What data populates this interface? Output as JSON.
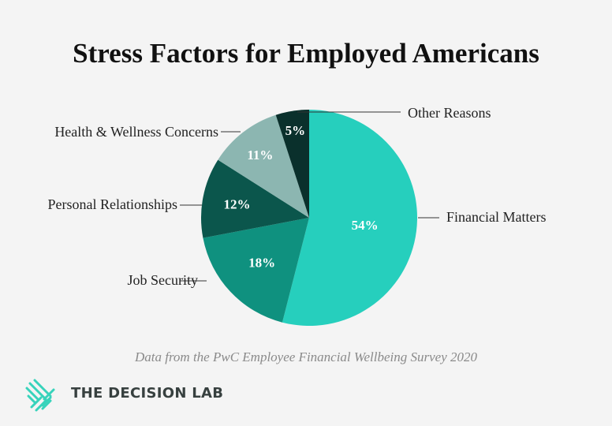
{
  "chart_data": {
    "type": "pie",
    "title": "Stress Factors for Employed Americans",
    "slices": [
      {
        "label": "Financial Matters",
        "value": 54,
        "display": "54%",
        "color": "#26cfbd"
      },
      {
        "label": "Job Security",
        "value": 18,
        "display": "18%",
        "color": "#0f917f"
      },
      {
        "label": "Personal Relationships",
        "value": 12,
        "display": "12%",
        "color": "#0b564c"
      },
      {
        "label": "Health & Wellness Concerns",
        "value": 11,
        "display": "11%",
        "color": "#8cb6b1"
      },
      {
        "label": "Other Reasons",
        "value": 5,
        "display": "5%",
        "color": "#0a302c"
      }
    ],
    "start": "top",
    "direction": "clockwise"
  },
  "source": "Data from the PwC Employee Financial Wellbeing Survey 2020",
  "brand": {
    "name": "THE DECISION LAB",
    "color": "#37d3bb"
  }
}
